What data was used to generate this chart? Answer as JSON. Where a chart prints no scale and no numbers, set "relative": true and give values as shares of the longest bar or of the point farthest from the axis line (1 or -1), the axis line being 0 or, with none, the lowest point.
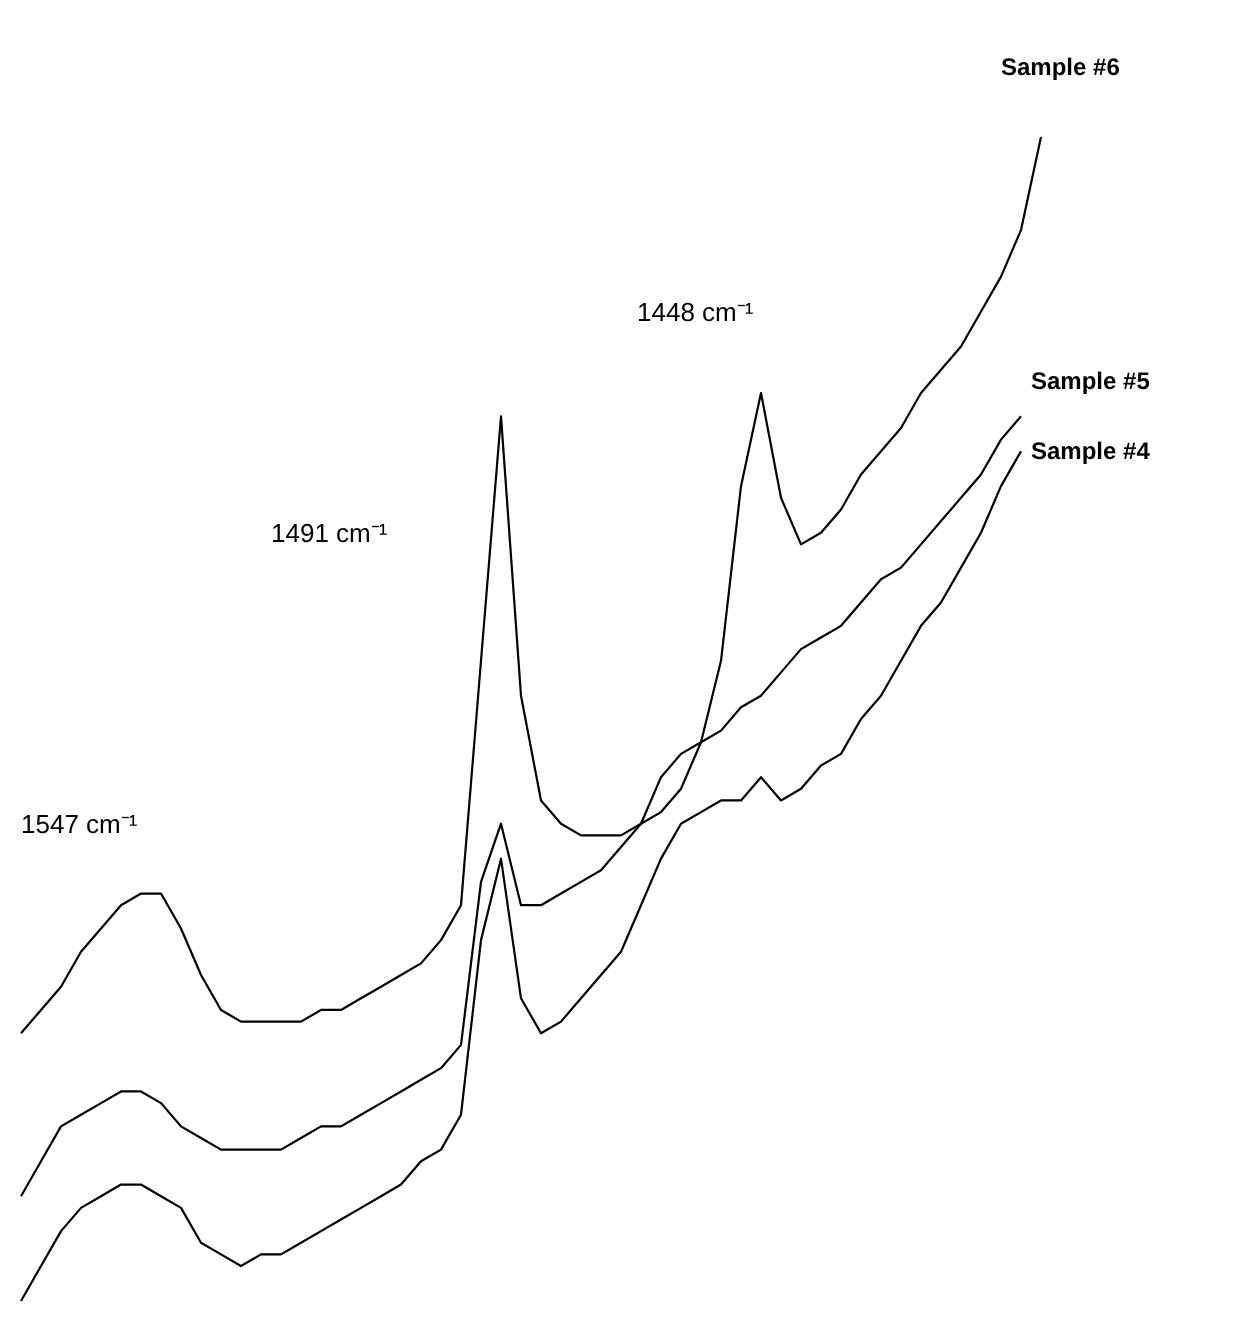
{
  "chart_data": {
    "type": "line",
    "relative": true,
    "grid": false,
    "legend": false,
    "marker": "none",
    "line_style": "solid",
    "categories": [
      null,
      null,
      null,
      null,
      null,
      null,
      null,
      null,
      null,
      null,
      null,
      null,
      null,
      null,
      null,
      null,
      null,
      null,
      null,
      null,
      null,
      null,
      null,
      null,
      null,
      null,
      null,
      null,
      null,
      null,
      null,
      null,
      null,
      null,
      null,
      null,
      null,
      null,
      null,
      null,
      null,
      null,
      null,
      null,
      null,
      null,
      null,
      null,
      null,
      null,
      null,
      null
    ],
    "annotations": [
      "1547 cm⁻¹",
      "1491 cm⁻¹",
      "1448 cm⁻¹"
    ],
    "series": [
      {
        "name": "Sample #6",
        "color": "#000000",
        "values": [
          0.23,
          0.25,
          0.27,
          0.3,
          0.32,
          0.34,
          0.35,
          0.35,
          0.32,
          0.28,
          0.25,
          0.24,
          0.24,
          0.24,
          0.24,
          0.25,
          0.25,
          0.26,
          0.27,
          0.28,
          0.29,
          0.31,
          0.34,
          0.55,
          0.76,
          0.52,
          0.43,
          0.41,
          0.4,
          0.4,
          0.4,
          0.41,
          0.42,
          0.44,
          0.48,
          0.55,
          0.7,
          0.78,
          0.69,
          0.65,
          0.66,
          0.68,
          0.71,
          0.73,
          0.75,
          0.78,
          0.8,
          0.82,
          0.85,
          0.88,
          0.92,
          1
        ]
      },
      {
        "name": "Sample #5",
        "color": "#000000",
        "values": [
          0.09,
          0.12,
          0.15,
          0.16,
          0.17,
          0.18,
          0.18,
          0.17,
          0.15,
          0.14,
          0.13,
          0.13,
          0.13,
          0.13,
          0.14,
          0.15,
          0.15,
          0.16,
          0.17,
          0.18,
          0.19,
          0.2,
          0.22,
          0.36,
          0.41,
          0.34,
          0.34,
          0.35,
          0.36,
          0.37,
          0.39,
          0.41,
          0.45,
          0.47,
          0.48,
          0.49,
          0.51,
          0.52,
          0.54,
          0.56,
          0.57,
          0.58,
          0.6,
          0.62,
          0.63,
          0.65,
          0.67,
          0.69,
          0.71,
          0.74,
          0.76,
          null
        ]
      },
      {
        "name": "Sample #4",
        "color": "#000000",
        "values": [
          0,
          0.03,
          0.06,
          0.08,
          0.09,
          0.1,
          0.1,
          0.09,
          0.08,
          0.05,
          0.04,
          0.03,
          0.04,
          0.04,
          0.05,
          0.06,
          0.07,
          0.08,
          0.09,
          0.1,
          0.12,
          0.13,
          0.16,
          0.31,
          0.38,
          0.26,
          0.23,
          0.24,
          0.26,
          0.28,
          0.3,
          0.34,
          0.38,
          0.41,
          0.42,
          0.43,
          0.43,
          0.45,
          0.43,
          0.44,
          0.46,
          0.47,
          0.5,
          0.52,
          0.55,
          0.58,
          0.6,
          0.63,
          0.66,
          0.7,
          0.73,
          null
        ]
      }
    ]
  }
}
